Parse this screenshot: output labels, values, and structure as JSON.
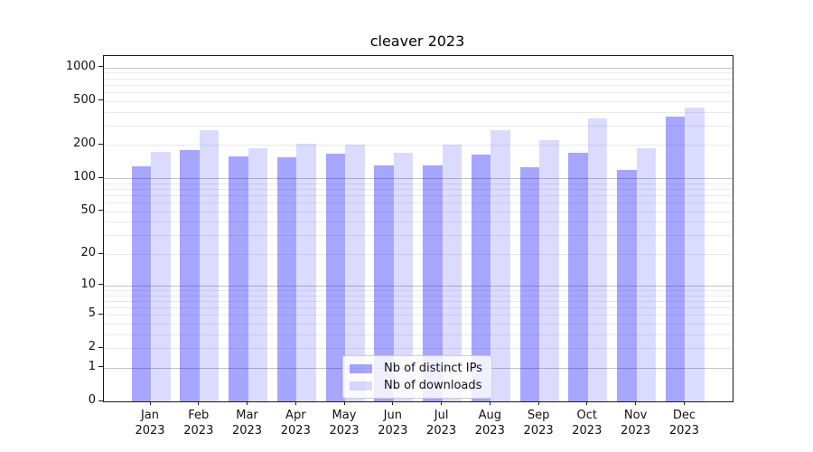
{
  "chart_data": {
    "type": "bar",
    "title": "cleaver 2023",
    "xlabel": "",
    "ylabel": "",
    "categories": [
      "Jan\n2023",
      "Feb\n2023",
      "Mar\n2023",
      "Apr\n2023",
      "May\n2023",
      "Jun\n2023",
      "Jul\n2023",
      "Aug\n2023",
      "Sep\n2023",
      "Oct\n2023",
      "Nov\n2023",
      "Dec\n2023"
    ],
    "series": [
      {
        "name": "Nb of distinct IPs",
        "color": "rgba(0,0,255,0.35)",
        "values": [
          128,
          181,
          159,
          154,
          167,
          131,
          131,
          163,
          126,
          170,
          120,
          364
        ]
      },
      {
        "name": "Nb of downloads",
        "color": "rgba(0,0,255,0.14)",
        "values": [
          175,
          274,
          188,
          205,
          203,
          169,
          202,
          271,
          223,
          346,
          188,
          438
        ]
      }
    ],
    "y_ticks": [
      0,
      1,
      2,
      5,
      10,
      20,
      50,
      100,
      200,
      500,
      1000
    ],
    "ylim": [
      0,
      1265
    ],
    "scale": "log10(v+1)",
    "grid": "horizontal major+minor",
    "legend_position": "lower center",
    "colors": {
      "axis": "#1a1a1a",
      "major_grid": "#c3c3c3",
      "minor_grid": "#eaeaea",
      "text": "#111111"
    }
  }
}
